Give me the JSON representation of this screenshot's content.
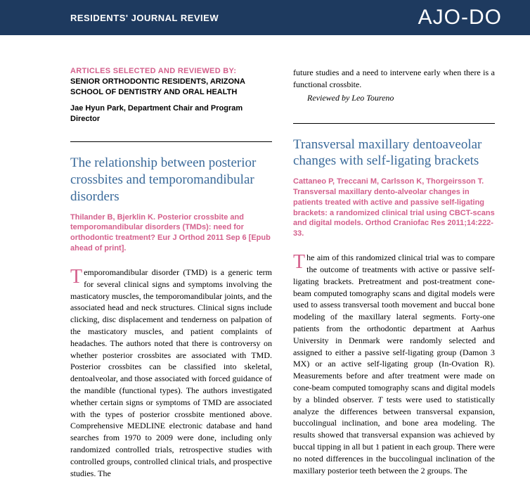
{
  "header": {
    "section": "RESIDENTS' JOURNAL REVIEW",
    "logo": "AJO-DO"
  },
  "left": {
    "selected_label": "ARTICLES SELECTED AND REVIEWED BY:",
    "selected_body": "SENIOR ORTHODONTIC RESIDENTS, ARIZONA SCHOOL OF DENTISTRY AND ORAL HEALTH",
    "selected_person": "Jae Hyun Park, Department Chair and Program Director",
    "article_title": "The relationship between posterior crossbites and temporomandibular disorders",
    "citation": "Thilander B, Bjerklin K. Posterior crossbite and temporomandibular disorders (TMDs): need for orthodontic treatment? Eur J Orthod 2011 Sep 6 [Epub ahead of print].",
    "body_first": "T",
    "body_rest": "emporomandibular disorder (TMD) is a generic term for several clinical signs and symptoms involving the masticatory muscles, the temporomandibular joints, and the associated head and neck structures. Clinical signs include clicking, disc displacement and tenderness on palpation of the masticatory muscles, and patient complaints of headaches. The authors noted that there is controversy on whether posterior crossbites are associated with TMD. Posterior crossbites can be classified into skeletal, dentoalveolar, and those associated with forced guidance of the mandible (functional types). The authors investigated whether certain signs or symptoms of TMD are associated with the types of posterior crossbite mentioned above. Comprehensive MEDLINE electronic database and hand searches from 1970 to 2009 were done, including only randomized controlled trials, retrospective studies with controlled groups, controlled clinical trials, and prospective studies. The"
  },
  "right": {
    "continuation": "future studies and a need to intervene early when there is a functional crossbite.",
    "reviewed_by": "Reviewed by Leo Toureno",
    "article_title": "Transversal maxillary dentoaveolar changes with self-ligating brackets",
    "citation": "Cattaneo P, Treccani M, Carlsson K, Thorgeirsson T. Transversal maxillary dento-alveolar changes in patients treated with active and passive self-ligating brackets: a randomized clinical trial using CBCT-scans and digital models. Orthod Craniofac Res 2011;14:222-33.",
    "body_first": "T",
    "body_rest": "he aim of this randomized clinical trial was to compare the outcome of treatments with active or passive self-ligating brackets. Pretreatment and post-treatment cone-beam computed tomography scans and digital models were used to assess transversal tooth movement and buccal bone modeling of the maxillary lateral segments. Forty-one patients from the orthodontic department at Aarhus University in Denmark were randomly selected and assigned to either a passive self-ligating group (Damon 3 MX) or an active self-ligating group (In-Ovation R). Measurements before and after treatment were made on cone-beam computed tomography scans and digital models by a blinded observer. T tests were used to statistically analyze the differences between transversal expansion, buccolingual inclination, and bone area modeling. The results showed that transversal expansion was achieved by buccal tipping in all but 1 patient in each group. There were no noted differences in the buccolingual inclination of the maxillary posterior teeth between the 2 groups. The"
  }
}
